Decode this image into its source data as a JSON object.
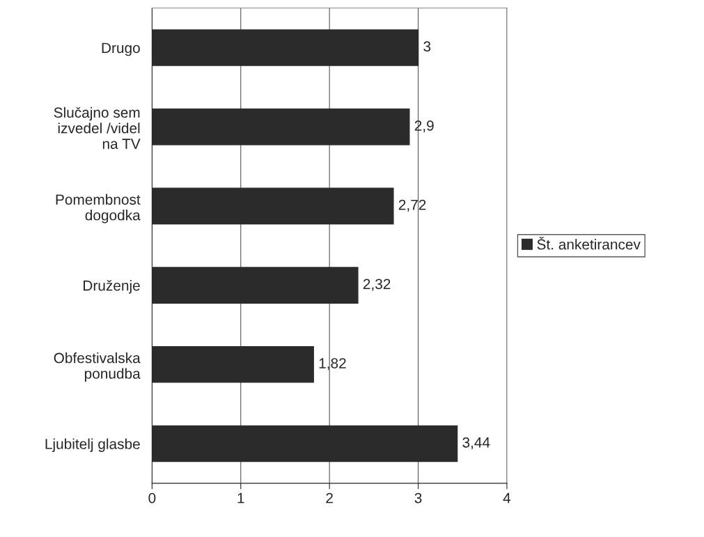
{
  "chart_data": {
    "type": "bar",
    "orientation": "horizontal",
    "categories": [
      "Drugo",
      "Slučajno sem\nizvedel /videl\nna TV",
      "Pomembnost\ndogodka",
      "Druženje",
      "Obfestivalska\nponudba",
      "Ljubitelj glasbe"
    ],
    "series": [
      {
        "name": "Št. anketirancev",
        "color": "#2b2b2b",
        "values": [
          3,
          2.9,
          2.72,
          2.32,
          1.82,
          3.44
        ],
        "value_labels": [
          "3",
          "2,9",
          "2,72",
          "2,32",
          "1,82",
          "3,44"
        ]
      }
    ],
    "xlim": [
      0,
      4
    ],
    "xticks": [
      0,
      1,
      2,
      3,
      4
    ],
    "grid": "x",
    "legend": "right"
  }
}
